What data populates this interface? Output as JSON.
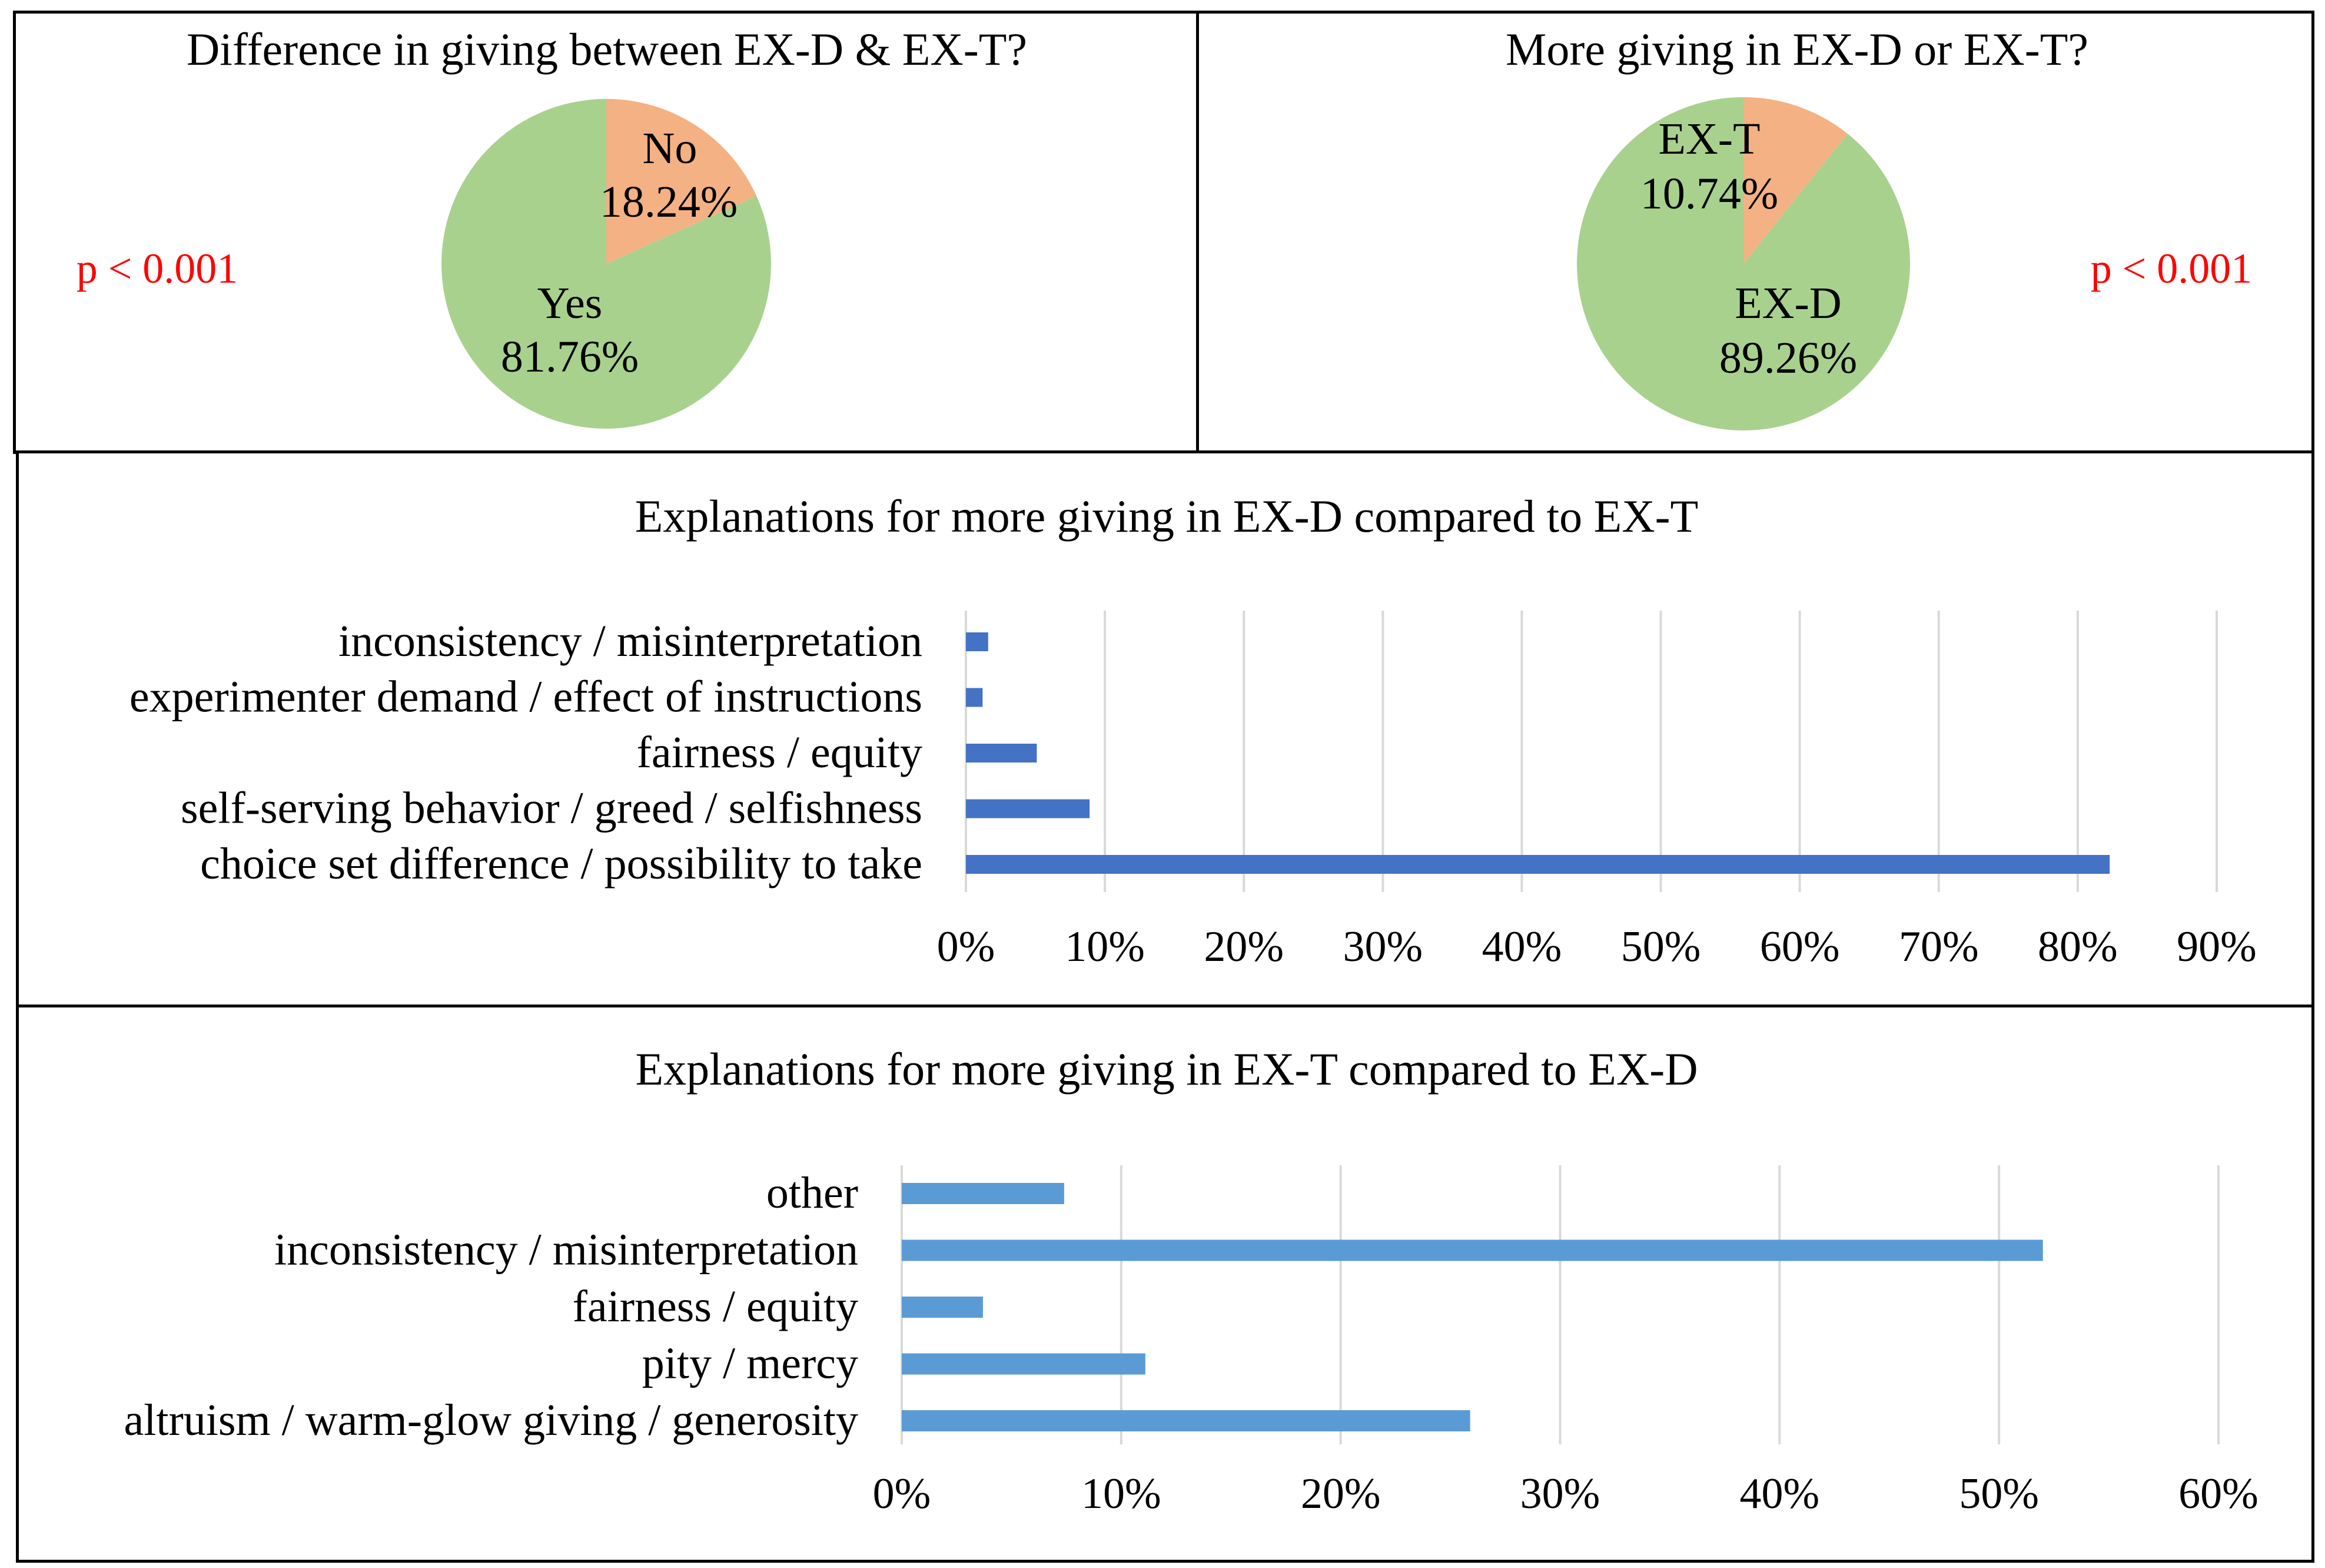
{
  "colors": {
    "pie_yes": "#a9d18e",
    "pie_no": "#f4b183",
    "bar_exd": "#4472c4",
    "bar_ext": "#5b9bd5",
    "grid": "#d9d9d9",
    "pvalue": "#ff0000"
  },
  "chart_data": [
    {
      "type": "pie",
      "title": "Difference in giving between EX-D & EX-T?",
      "annotation": "p < 0.001",
      "slices": [
        {
          "label": "No",
          "value": 18.24,
          "value_label": "18.24%"
        },
        {
          "label": "Yes",
          "value": 81.76,
          "value_label": "81.76%"
        }
      ]
    },
    {
      "type": "pie",
      "title": "More giving in EX-D or EX-T?",
      "annotation": "p < 0.001",
      "slices": [
        {
          "label": "EX-T",
          "value": 10.74,
          "value_label": "10.74%"
        },
        {
          "label": "EX-D",
          "value": 89.26,
          "value_label": "89.26%"
        }
      ]
    },
    {
      "type": "bar",
      "orientation": "horizontal",
      "title": "Explanations for more giving in EX-D compared to EX-T",
      "categories": [
        "inconsistency / misinterpretation",
        "experimenter demand / effect of instructions",
        "fairness / equity",
        "self-serving behavior / greed / selfishness",
        "choice set difference / possibility to take"
      ],
      "values": [
        1.6,
        1.2,
        5.1,
        8.9,
        82.3
      ],
      "xlim": [
        0,
        90
      ],
      "ticks": [
        "0%",
        "10%",
        "20%",
        "30%",
        "40%",
        "50%",
        "60%",
        "70%",
        "80%",
        "90%"
      ],
      "grid": true
    },
    {
      "type": "bar",
      "orientation": "horizontal",
      "title": "Explanations for more giving in EX-T compared to EX-D",
      "categories": [
        "other",
        "inconsistency / misinterpretation",
        "fairness / equity",
        "pity / mercy",
        "altruism / warm-glow giving / generosity"
      ],
      "values": [
        7.4,
        52.0,
        3.7,
        11.1,
        25.9
      ],
      "xlim": [
        0,
        60
      ],
      "ticks": [
        "0%",
        "10%",
        "20%",
        "30%",
        "40%",
        "50%",
        "60%"
      ],
      "grid": true
    }
  ]
}
